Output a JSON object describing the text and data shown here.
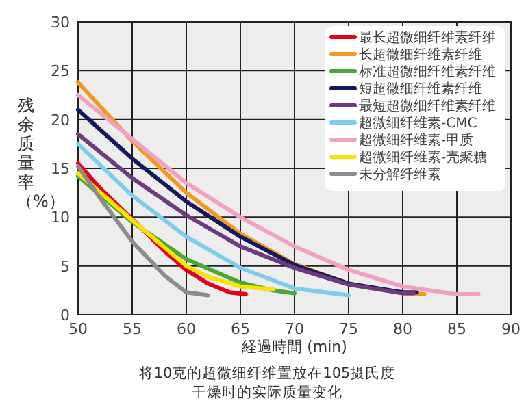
{
  "chart_data": {
    "type": "line",
    "xlabel": "経過時間 (min)",
    "ylabel": "残余质量率（%）",
    "annotations": [
      "将10克的超微细纤维置放在105摄氏度干燥时的实际质量变化"
    ],
    "xlim": [
      50,
      90
    ],
    "ylim": [
      0,
      30
    ],
    "xticks": [
      50,
      55,
      60,
      65,
      70,
      75,
      80,
      85,
      90
    ],
    "yticks": [
      0,
      5,
      10,
      15,
      20,
      25,
      30
    ],
    "grid": true,
    "legend": "top right",
    "marker": "none",
    "line_style": "solid",
    "series": [
      {
        "name": "最长超微细纤维素纤维",
        "color": "#e3001b",
        "x": [
          50,
          52,
          55,
          58,
          60,
          62,
          64,
          65.5
        ],
        "values": [
          15.5,
          13,
          9.8,
          6.5,
          4.6,
          3.2,
          2.3,
          2.1
        ]
      },
      {
        "name": "长超微细纤维素纤维",
        "color": "#f39a1e",
        "x": [
          50,
          55,
          60,
          65,
          70,
          75,
          80,
          82
        ],
        "values": [
          23.8,
          17.8,
          12.5,
          8.3,
          5.2,
          3.2,
          2.2,
          2.1
        ]
      },
      {
        "name": "标准超微细纤维素纤维",
        "color": "#4aa838",
        "x": [
          50,
          55,
          60,
          65,
          68,
          70
        ],
        "values": [
          14.2,
          9.5,
          5.7,
          3.3,
          2.5,
          2.2
        ]
      },
      {
        "name": "短超微细纤维素纤维",
        "color": "#14195e",
        "x": [
          50,
          55,
          60,
          65,
          70,
          75,
          80,
          81.3
        ],
        "values": [
          21,
          16,
          11.6,
          8,
          5.1,
          3.2,
          2.3,
          2.3
        ]
      },
      {
        "name": "最短超微细纤维素纤维",
        "color": "#6e3a7e",
        "x": [
          50,
          55,
          60,
          65,
          70,
          75,
          80,
          81
        ],
        "values": [
          18.5,
          14,
          10.2,
          7,
          4.8,
          3.1,
          2.2,
          2.2
        ]
      },
      {
        "name": "超微细纤维素-CMC",
        "color": "#7fcdec",
        "x": [
          50,
          55,
          60,
          65,
          70,
          75
        ],
        "values": [
          17.5,
          12.2,
          8,
          4.8,
          2.7,
          2
        ]
      },
      {
        "name": "超微细纤维素-甲质",
        "color": "#f2a0c4",
        "x": [
          50,
          55,
          60,
          65,
          70,
          75,
          80,
          85,
          87
        ],
        "values": [
          22.5,
          18,
          13.5,
          10,
          7,
          4.6,
          2.9,
          2.1,
          2.1
        ]
      },
      {
        "name": "超微细纤维素-壳聚糖",
        "color": "#fde100",
        "x": [
          50,
          55,
          60,
          62,
          65,
          68
        ],
        "values": [
          14.5,
          9.7,
          5,
          3.9,
          2.9,
          2.6
        ]
      },
      {
        "name": "未分解纤维素",
        "color": "#8c8c8c",
        "x": [
          50,
          52,
          55,
          58,
          60,
          62
        ],
        "values": [
          15.2,
          12,
          7.5,
          4,
          2.3,
          2
        ]
      }
    ]
  }
}
